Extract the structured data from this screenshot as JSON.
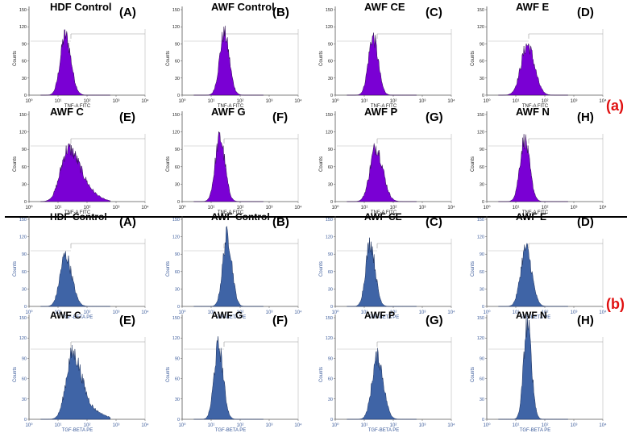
{
  "chart_data": [
    {
      "type": "histogram",
      "panel_set_label": "(a)",
      "bar_color": "#7a00d4",
      "edge_color": "#2a0a4a",
      "label_color": "#e01010",
      "xlabel": "TNF-A FITC",
      "ylabel": "Counts",
      "x_scale": "log",
      "xlim": [
        1,
        10000
      ],
      "x_tick_labels": [
        "10⁰",
        "10¹",
        "10²",
        "10³",
        "10⁴"
      ],
      "y_tick_labels": [
        "0",
        "30",
        "60",
        "90",
        "120",
        "150"
      ],
      "ylim": [
        0,
        150
      ],
      "panels": [
        {
          "title": "HDF Control",
          "letter": "(A)",
          "peak_log": 1.25,
          "peak_counts": 105,
          "width": 0.17,
          "skew": 0.15,
          "tail": 0
        },
        {
          "title": "AWF Control",
          "letter": "(B)",
          "peak_log": 1.45,
          "peak_counts": 108,
          "width": 0.16,
          "skew": 0.1,
          "tail": 0
        },
        {
          "title": "AWF CE",
          "letter": "(C)",
          "peak_log": 1.3,
          "peak_counts": 102,
          "width": 0.16,
          "skew": 0.1,
          "tail": 0
        },
        {
          "title": "AWF E",
          "letter": "(D)",
          "peak_log": 1.4,
          "peak_counts": 88,
          "width": 0.22,
          "skew": 0.1,
          "tail": 0
        },
        {
          "title": "AWF C",
          "letter": "(E)",
          "peak_log": 1.35,
          "peak_counts": 90,
          "width": 0.26,
          "skew": 0.55,
          "tail": 1
        },
        {
          "title": "AWF G",
          "letter": "(F)",
          "peak_log": 1.3,
          "peak_counts": 110,
          "width": 0.16,
          "skew": 0.1,
          "tail": 0
        },
        {
          "title": "AWF P",
          "letter": "(G)",
          "peak_log": 1.4,
          "peak_counts": 94,
          "width": 0.2,
          "skew": 0.2,
          "tail": 0
        },
        {
          "title": "AWF N",
          "letter": "(H)",
          "peak_log": 1.3,
          "peak_counts": 106,
          "width": 0.16,
          "skew": 0.1,
          "tail": 0
        }
      ]
    },
    {
      "type": "histogram",
      "panel_set_label": "(b)",
      "bar_color": "#3f64a6",
      "edge_color": "#1a2f5c",
      "label_color": "#e01010",
      "xlabel": "TGF-BETA PE",
      "ylabel": "Counts",
      "x_scale": "log",
      "xlim": [
        1,
        10000
      ],
      "x_tick_labels": [
        "10⁰",
        "10¹",
        "10²",
        "10³",
        "10⁴"
      ],
      "y_tick_labels": [
        "0",
        "30",
        "60",
        "90",
        "120",
        "150"
      ],
      "ylim": [
        0,
        150
      ],
      "panels": [
        {
          "title": "HDF Control",
          "letter": "(A)",
          "peak_log": 1.25,
          "peak_counts": 88,
          "width": 0.18,
          "skew": 0.25,
          "tail": 0
        },
        {
          "title": "AWF Control",
          "letter": "(B)",
          "peak_log": 1.55,
          "peak_counts": 122,
          "width": 0.15,
          "skew": 0.1,
          "tail": 0
        },
        {
          "title": "AWF CE",
          "letter": "(C)",
          "peak_log": 1.2,
          "peak_counts": 110,
          "width": 0.15,
          "skew": 0.15,
          "tail": 0
        },
        {
          "title": "AWF E",
          "letter": "(D)",
          "peak_log": 1.35,
          "peak_counts": 100,
          "width": 0.18,
          "skew": 0.1,
          "tail": 0
        },
        {
          "title": "AWF C",
          "letter": "(E)",
          "peak_log": 1.5,
          "peak_counts": 96,
          "width": 0.22,
          "skew": 0.45,
          "tail": 1
        },
        {
          "title": "AWF G",
          "letter": "(F)",
          "peak_log": 1.25,
          "peak_counts": 108,
          "width": 0.15,
          "skew": 0.1,
          "tail": 0
        },
        {
          "title": "AWF P",
          "letter": "(G)",
          "peak_log": 1.45,
          "peak_counts": 92,
          "width": 0.18,
          "skew": 0.15,
          "tail": 0
        },
        {
          "title": "AWF N",
          "letter": "(H)",
          "peak_log": 1.4,
          "peak_counts": 140,
          "width": 0.13,
          "skew": 0.1,
          "tail": 0
        }
      ]
    }
  ]
}
